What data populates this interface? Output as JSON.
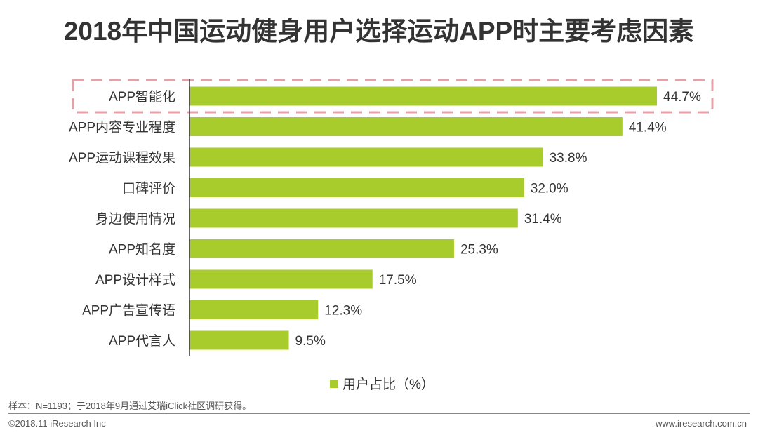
{
  "chart_data": {
    "type": "bar",
    "orientation": "horizontal",
    "title": "2018年中国运动健身用户选择运动APP时主要考虑因素",
    "categories": [
      "APP智能化",
      "APP内容专业程度",
      "APP运动课程效果",
      "口碑评价",
      "身边使用情况",
      "APP知名度",
      "APP设计样式",
      "APP广告宣传语",
      "APP代言人"
    ],
    "values": [
      44.7,
      41.4,
      33.8,
      32.0,
      31.4,
      25.3,
      17.5,
      12.3,
      9.5
    ],
    "labels": [
      "44.7%",
      "41.4%",
      "33.8%",
      "32.0%",
      "31.4%",
      "25.3%",
      "17.5%",
      "12.3%",
      "9.5%"
    ],
    "series_name": "用户占比（%）",
    "highlighted_category": "APP智能化",
    "xlim": [
      0,
      50
    ],
    "grid": false,
    "legend_position": "bottom",
    "bar_color": "#a8cc2c",
    "highlight_color": "#e8a0a8"
  },
  "footer": {
    "note": "样本：N=1193；于2018年9月通过艾瑞iClick社区调研获得。",
    "copyright": "©2018.11 iResearch Inc",
    "website": "www.iresearch.com.cn"
  }
}
